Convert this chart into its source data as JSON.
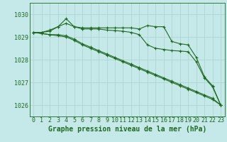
{
  "background_color": "#c5e8e8",
  "grid_color": "#aed4d4",
  "line_color": "#1e6b1e",
  "xlabel": "Graphe pression niveau de la mer (hPa)",
  "xlabel_fontsize": 7,
  "tick_fontsize": 6,
  "ylim": [
    1025.5,
    1030.5
  ],
  "yticks": [
    1026,
    1027,
    1028,
    1029,
    1030
  ],
  "xlim": [
    -0.5,
    23.5
  ],
  "xticks": [
    0,
    1,
    2,
    3,
    4,
    5,
    6,
    7,
    8,
    9,
    10,
    11,
    12,
    13,
    14,
    15,
    16,
    17,
    18,
    19,
    20,
    21,
    22,
    23
  ],
  "series": [
    [
      1029.2,
      1029.2,
      1029.25,
      1029.45,
      1029.8,
      1029.45,
      1029.4,
      1029.4,
      1029.4,
      1029.4,
      1029.4,
      1029.4,
      1029.4,
      1029.35,
      1029.5,
      1029.45,
      1029.45,
      1028.8,
      1028.7,
      1028.65,
      1028.1,
      1027.25,
      1026.85,
      1026.0
    ],
    [
      1029.2,
      1029.2,
      1029.3,
      1029.45,
      1029.6,
      1029.45,
      1029.35,
      1029.35,
      1029.35,
      1029.3,
      1029.28,
      1029.25,
      1029.2,
      1029.1,
      1028.65,
      1028.5,
      1028.45,
      1028.4,
      1028.38,
      1028.35,
      1027.9,
      1027.2,
      1026.8,
      1026.0
    ],
    [
      1029.2,
      1029.15,
      1029.1,
      1029.1,
      1029.05,
      1028.9,
      1028.7,
      1028.55,
      1028.4,
      1028.25,
      1028.1,
      1027.95,
      1027.8,
      1027.65,
      1027.5,
      1027.35,
      1027.2,
      1027.05,
      1026.9,
      1026.75,
      1026.6,
      1026.45,
      1026.3,
      1026.0
    ],
    [
      1029.2,
      1029.15,
      1029.1,
      1029.05,
      1029.0,
      1028.85,
      1028.65,
      1028.5,
      1028.35,
      1028.2,
      1028.05,
      1027.9,
      1027.75,
      1027.6,
      1027.45,
      1027.3,
      1027.15,
      1027.0,
      1026.85,
      1026.7,
      1026.55,
      1026.4,
      1026.25,
      1026.0
    ]
  ]
}
